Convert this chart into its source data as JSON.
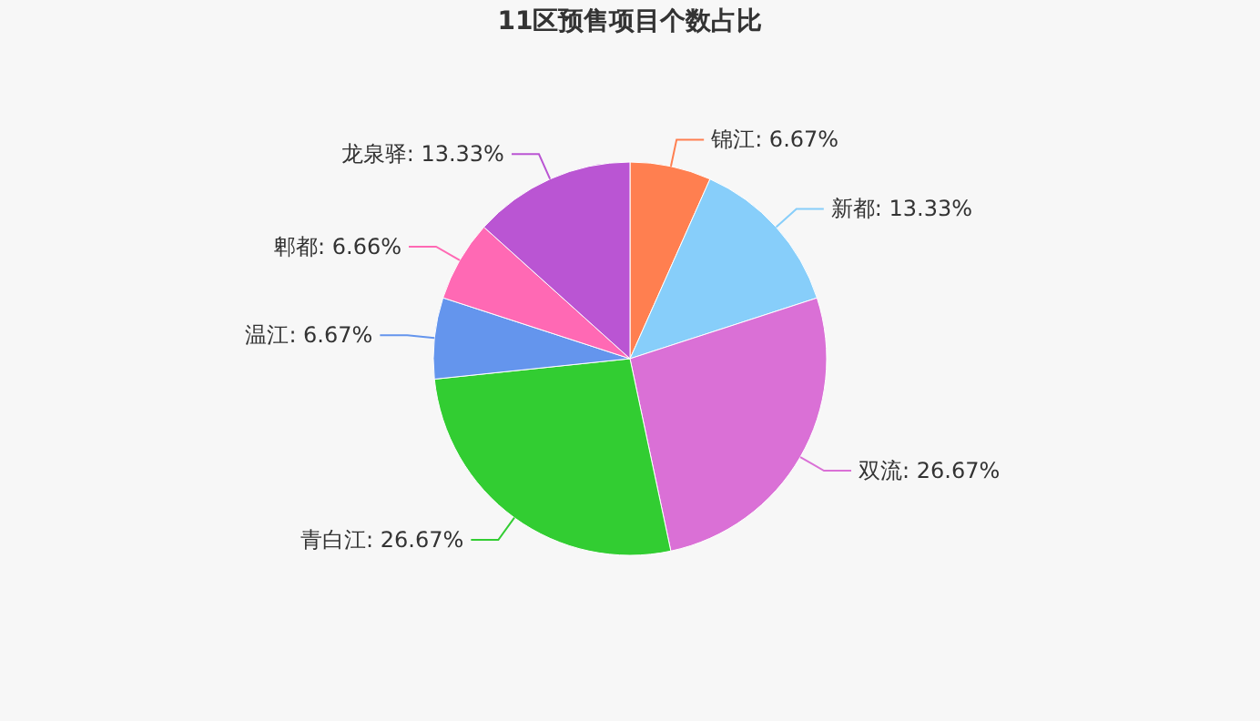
{
  "chart_data": {
    "type": "pie",
    "title": "11区预售项目个数占比",
    "categories": [
      "锦江",
      "新都",
      "双流",
      "青白江",
      "温江",
      "郫都",
      "龙泉驿"
    ],
    "values": [
      6.67,
      13.33,
      26.67,
      26.67,
      6.67,
      6.66,
      13.33
    ],
    "value_labels": [
      "6.67%",
      "13.33%",
      "26.67%",
      "26.67%",
      "6.67%",
      "6.66%",
      "13.33%"
    ],
    "colors": [
      "#ff7f50",
      "#87cefa",
      "#da70d6",
      "#32cd32",
      "#6495ed",
      "#ff69b4",
      "#ba55d3"
    ]
  }
}
